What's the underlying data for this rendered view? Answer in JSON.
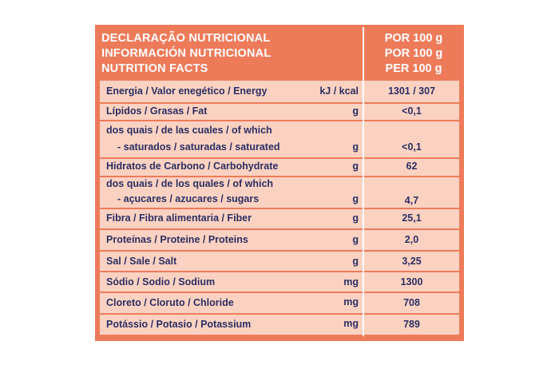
{
  "header": {
    "left_lines": [
      "DECLARAÇÃO NUTRICIONAL",
      "INFORMACIÓN NUTRICIONAL",
      "NUTRITION FACTS"
    ],
    "right_lines": [
      "POR 100 g",
      "POR 100 g",
      "PER 100 g"
    ]
  },
  "rows": [
    {
      "label": "Energia / Valor enegético / Energy",
      "unit": "kJ / kcal",
      "value": "1301 / 307"
    },
    {
      "label": "Lípidos / Grasas / Fat",
      "unit": "g",
      "value": "<0,1"
    },
    {
      "label": "dos quais / de las cuales / of which",
      "label2": "- saturados / saturadas / saturated",
      "unit": "g",
      "value": "<0,1"
    },
    {
      "label": "Hidratos de Carbono / Carbohydrate",
      "unit": "g",
      "value": "62"
    },
    {
      "label": "dos quais / de los quales / of which",
      "label2": "- açucares / azucares / sugars",
      "unit": "g",
      "value": "4,7"
    },
    {
      "label": "Fibra / Fibra alimentaria / Fiber",
      "unit": "g",
      "value": "25,1"
    },
    {
      "label": "Proteínas / Proteine / Proteins",
      "unit": "g",
      "value": "2,0"
    },
    {
      "label": "Sal / Sale / Salt",
      "unit": "g",
      "value": "3,25"
    },
    {
      "label": "Sódio / Sodio / Sodium",
      "unit": "mg",
      "value": "1300"
    },
    {
      "label": "Cloreto / Cloruto / Chloride",
      "unit": "mg",
      "value": "708"
    },
    {
      "label": "Potássio / Potasio / Potassium",
      "unit": "mg",
      "value": "789"
    }
  ],
  "colors": {
    "panel": "#ed7b5a",
    "row": "#fbd2c2",
    "text": "#2a2f63",
    "header_text": "#ffffff"
  }
}
